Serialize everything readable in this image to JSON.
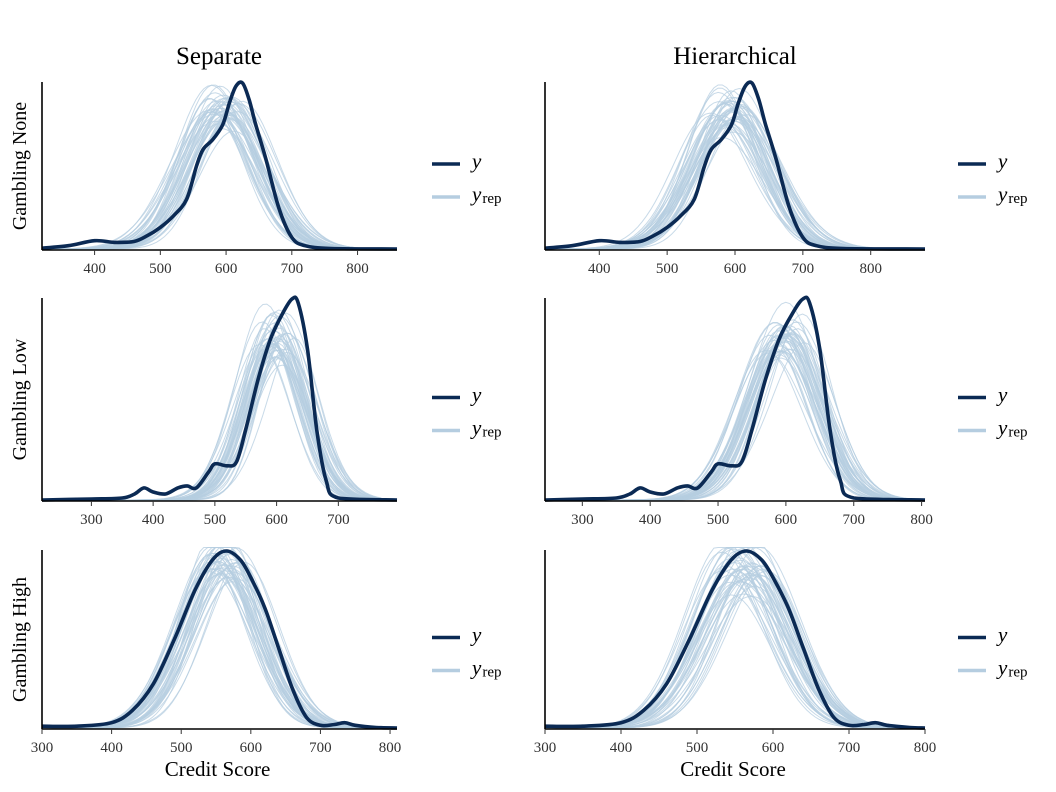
{
  "chart_data": {
    "type": "line",
    "description_free": true,
    "columns": [
      "Separate",
      "Hierarchical"
    ],
    "rows": [
      "Gambling None",
      "Gambling Low",
      "Gambling High"
    ],
    "xlabel": "Credit Score",
    "legend": {
      "y_label": "y",
      "yrep_label": "y",
      "yrep_sub": "rep",
      "placement": "right"
    },
    "colors": {
      "y": "#0b2a54",
      "yrep": "#b5cde0",
      "axis": "#000000"
    },
    "panels": [
      {
        "row": "Gambling None",
        "column": "Separate",
        "xlim": [
          320,
          860
        ],
        "xticks": [
          400,
          500,
          600,
          700,
          800
        ],
        "y": {
          "x": [
            320,
            360,
            400,
            430,
            460,
            480,
            500,
            520,
            540,
            555,
            565,
            580,
            595,
            605,
            615,
            625,
            635,
            645,
            660,
            680,
            700,
            720,
            760,
            860
          ],
          "density": [
            0.005,
            0.02,
            0.05,
            0.04,
            0.045,
            0.08,
            0.13,
            0.2,
            0.3,
            0.5,
            0.6,
            0.66,
            0.75,
            0.88,
            0.98,
            1.0,
            0.9,
            0.75,
            0.55,
            0.25,
            0.07,
            0.02,
            0.003,
            0.0
          ]
        },
        "yrep_mean": {
          "mu": 595,
          "sigma": 55,
          "peak": 0.84
        }
      },
      {
        "row": "Gambling None",
        "column": "Hierarchical",
        "xlim": [
          320,
          880
        ],
        "xticks": [
          400,
          500,
          600,
          700,
          800
        ],
        "y": {
          "x": [
            320,
            360,
            400,
            430,
            460,
            480,
            500,
            520,
            540,
            555,
            565,
            580,
            595,
            605,
            615,
            625,
            635,
            645,
            660,
            680,
            700,
            720,
            760,
            880
          ],
          "density": [
            0.005,
            0.02,
            0.05,
            0.04,
            0.045,
            0.08,
            0.13,
            0.2,
            0.3,
            0.5,
            0.6,
            0.66,
            0.75,
            0.88,
            0.98,
            1.0,
            0.9,
            0.75,
            0.55,
            0.25,
            0.07,
            0.02,
            0.003,
            0.0
          ]
        },
        "yrep_mean": {
          "mu": 595,
          "sigma": 55,
          "peak": 0.84
        }
      },
      {
        "row": "Gambling Low",
        "column": "Separate",
        "xlim": [
          220,
          795
        ],
        "xticks": [
          300,
          400,
          500,
          600,
          700
        ],
        "y": {
          "x": [
            220,
            300,
            350,
            370,
            385,
            400,
            420,
            440,
            455,
            470,
            490,
            500,
            520,
            535,
            550,
            570,
            590,
            610,
            625,
            635,
            650,
            665,
            680,
            700,
            795
          ],
          "density": [
            0.0,
            0.005,
            0.01,
            0.03,
            0.06,
            0.04,
            0.03,
            0.06,
            0.07,
            0.06,
            0.14,
            0.18,
            0.17,
            0.19,
            0.35,
            0.6,
            0.8,
            0.93,
            1.0,
            0.98,
            0.75,
            0.35,
            0.1,
            0.01,
            0.0
          ]
        },
        "yrep_mean": {
          "mu": 600,
          "sigma": 48,
          "peak": 0.8
        }
      },
      {
        "row": "Gambling Low",
        "column": "Hierarchical",
        "xlim": [
          245,
          805
        ],
        "xticks": [
          300,
          400,
          500,
          600,
          700,
          800
        ],
        "y": {
          "x": [
            245,
            300,
            350,
            370,
            385,
            400,
            420,
            440,
            455,
            470,
            490,
            500,
            520,
            535,
            550,
            570,
            590,
            610,
            625,
            635,
            650,
            665,
            680,
            700,
            805
          ],
          "density": [
            0.0,
            0.005,
            0.01,
            0.03,
            0.06,
            0.04,
            0.03,
            0.06,
            0.07,
            0.06,
            0.14,
            0.18,
            0.17,
            0.19,
            0.35,
            0.6,
            0.8,
            0.93,
            1.0,
            0.98,
            0.75,
            0.35,
            0.1,
            0.01,
            0.0
          ]
        },
        "yrep_mean": {
          "mu": 595,
          "sigma": 50,
          "peak": 0.8
        }
      },
      {
        "row": "Gambling High",
        "column": "Separate",
        "xlim": [
          300,
          810
        ],
        "xticks": [
          300,
          400,
          500,
          600,
          700,
          800
        ],
        "y": {
          "x": [
            300,
            350,
            400,
            430,
            460,
            490,
            520,
            545,
            565,
            585,
            600,
            620,
            640,
            660,
            680,
            700,
            720,
            735,
            750,
            780,
            810
          ],
          "density": [
            0.01,
            0.01,
            0.03,
            0.1,
            0.25,
            0.5,
            0.78,
            0.95,
            1.0,
            0.95,
            0.85,
            0.68,
            0.45,
            0.22,
            0.06,
            0.015,
            0.02,
            0.03,
            0.015,
            0.003,
            0.0
          ]
        },
        "yrep_mean": {
          "mu": 560,
          "sigma": 55,
          "peak": 0.93
        }
      },
      {
        "row": "Gambling High",
        "column": "Hierarchical",
        "xlim": [
          300,
          800
        ],
        "xticks": [
          300,
          400,
          500,
          600,
          700,
          800
        ],
        "y": {
          "x": [
            300,
            350,
            400,
            430,
            460,
            490,
            520,
            545,
            565,
            585,
            600,
            620,
            640,
            660,
            680,
            700,
            720,
            735,
            750,
            780,
            800
          ],
          "density": [
            0.01,
            0.01,
            0.03,
            0.1,
            0.25,
            0.5,
            0.78,
            0.95,
            1.0,
            0.95,
            0.85,
            0.68,
            0.45,
            0.22,
            0.06,
            0.015,
            0.02,
            0.03,
            0.015,
            0.003,
            0.0
          ]
        },
        "yrep_mean": {
          "mu": 562,
          "sigma": 55,
          "peak": 0.93
        }
      }
    ]
  }
}
